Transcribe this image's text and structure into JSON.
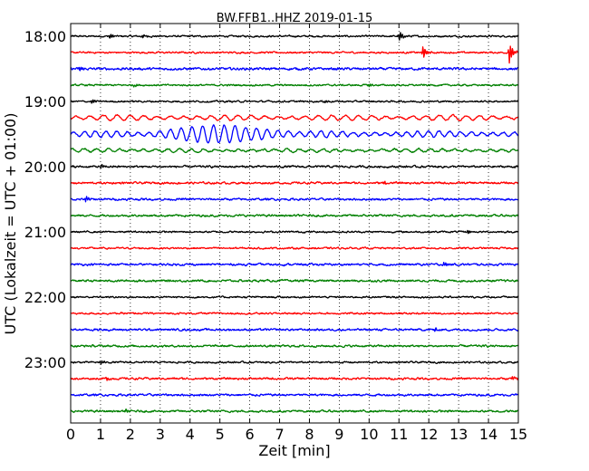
{
  "chart_data": {
    "type": "line",
    "title": "BW.FFB1..HHZ 2019-01-15",
    "xlabel": "Zeit  [min]",
    "ylabel": "UTC (Lokalzeit = UTC + 01:00)",
    "xlim": [
      0,
      15
    ],
    "x_ticks": [
      "0",
      "1",
      "2",
      "3",
      "4",
      "5",
      "6",
      "7",
      "8",
      "9",
      "10",
      "11",
      "12",
      "13",
      "14",
      "15"
    ],
    "y_ticks": [
      {
        "label": "18:00",
        "trace": 0
      },
      {
        "label": "19:00",
        "trace": 4
      },
      {
        "label": "20:00",
        "trace": 8
      },
      {
        "label": "21:00",
        "trace": 12
      },
      {
        "label": "22:00",
        "trace": 16
      },
      {
        "label": "23:00",
        "trace": 20
      }
    ],
    "grid": "vertical dotted at each minute",
    "colors": [
      "#000000",
      "#ff0000",
      "#0000ff",
      "#008000"
    ],
    "traces": [
      {
        "start": "18:00",
        "color": "#000000",
        "noise": 0.25,
        "events": [
          {
            "t": 1.3,
            "amp": 0.7
          },
          {
            "t": 2.4,
            "amp": 0.6
          },
          {
            "t": 11.0,
            "amp": 1.5
          }
        ]
      },
      {
        "start": "18:15",
        "color": "#ff0000",
        "noise": 0.25,
        "events": [
          {
            "t": 11.8,
            "amp": 1.8
          },
          {
            "t": 14.7,
            "amp": 2.8
          }
        ]
      },
      {
        "start": "18:30",
        "color": "#0000ff",
        "noise": 0.35,
        "events": [
          {
            "t": 0.3,
            "amp": 0.7
          }
        ]
      },
      {
        "start": "18:45",
        "color": "#008000",
        "noise": 0.25,
        "events": [
          {
            "t": 2.1,
            "amp": 0.5
          },
          {
            "t": 10.0,
            "amp": 0.6
          }
        ]
      },
      {
        "start": "19:00",
        "color": "#000000",
        "noise": 0.25,
        "events": [
          {
            "t": 0.7,
            "amp": 0.6
          },
          {
            "t": 8.5,
            "amp": 0.4
          }
        ]
      },
      {
        "start": "19:15",
        "color": "#ff0000",
        "noise": 0.2,
        "osc": {
          "period": 0.45,
          "amp": 1.3
        }
      },
      {
        "start": "19:30",
        "color": "#0000ff",
        "noise": 0.2,
        "osc": {
          "period": 0.36,
          "amp": 1.5
        },
        "burst": {
          "t0": 2.2,
          "t1": 7.8,
          "peak": 4.5,
          "amp": 3.0
        }
      },
      {
        "start": "19:45",
        "color": "#008000",
        "noise": 0.25,
        "osc": {
          "period": 0.4,
          "amp": 0.8
        }
      },
      {
        "start": "20:00",
        "color": "#000000",
        "noise": 0.3,
        "events": [
          {
            "t": 1.0,
            "amp": 0.6
          }
        ]
      },
      {
        "start": "20:15",
        "color": "#ff0000",
        "noise": 0.3,
        "events": [
          {
            "t": 10.5,
            "amp": 0.5
          }
        ]
      },
      {
        "start": "20:30",
        "color": "#0000ff",
        "noise": 0.3,
        "events": [
          {
            "t": 0.5,
            "amp": 0.8
          }
        ]
      },
      {
        "start": "20:45",
        "color": "#008000",
        "noise": 0.3,
        "events": []
      },
      {
        "start": "21:00",
        "color": "#000000",
        "noise": 0.25,
        "events": [
          {
            "t": 13.3,
            "amp": 0.5
          }
        ]
      },
      {
        "start": "21:15",
        "color": "#ff0000",
        "noise": 0.25,
        "events": []
      },
      {
        "start": "21:30",
        "color": "#0000ff",
        "noise": 0.3,
        "events": [
          {
            "t": 12.5,
            "amp": 0.6
          }
        ]
      },
      {
        "start": "21:45",
        "color": "#008000",
        "noise": 0.3,
        "events": []
      },
      {
        "start": "22:00",
        "color": "#000000",
        "noise": 0.25,
        "events": []
      },
      {
        "start": "22:15",
        "color": "#ff0000",
        "noise": 0.25,
        "events": []
      },
      {
        "start": "22:30",
        "color": "#0000ff",
        "noise": 0.3,
        "events": [
          {
            "t": 12.2,
            "amp": 0.5
          }
        ]
      },
      {
        "start": "22:45",
        "color": "#008000",
        "noise": 0.3,
        "events": []
      },
      {
        "start": "23:00",
        "color": "#000000",
        "noise": 0.25,
        "events": [
          {
            "t": 1.0,
            "amp": 0.6
          }
        ]
      },
      {
        "start": "23:15",
        "color": "#ff0000",
        "noise": 0.3,
        "events": [
          {
            "t": 1.2,
            "amp": 0.6
          },
          {
            "t": 14.8,
            "amp": 0.6
          }
        ]
      },
      {
        "start": "23:30",
        "color": "#0000ff",
        "noise": 0.3,
        "events": []
      },
      {
        "start": "23:45",
        "color": "#008000",
        "noise": 0.3,
        "events": [
          {
            "t": 1.8,
            "amp": 0.5
          }
        ]
      }
    ]
  }
}
